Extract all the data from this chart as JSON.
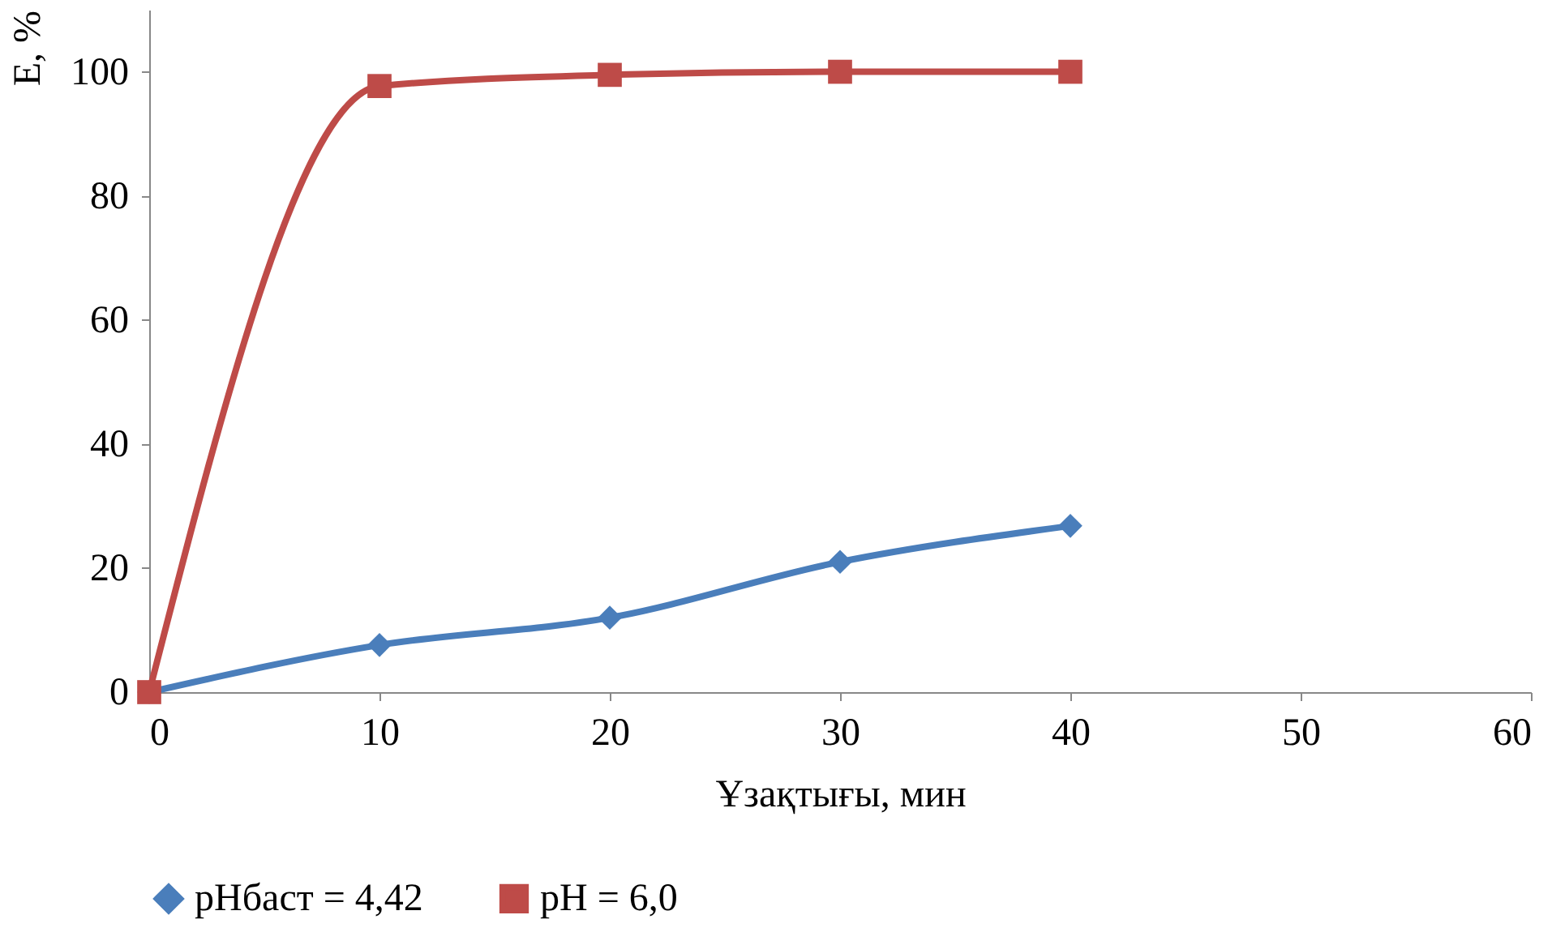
{
  "chart_data": {
    "type": "line",
    "xlabel": "Ұзақтығы, мин",
    "ylabel": "E, %",
    "xlim": [
      0,
      60
    ],
    "xticks": [
      0,
      10,
      20,
      30,
      40,
      50,
      60
    ],
    "ylim": [
      0,
      110
    ],
    "yticks": [
      0,
      20,
      40,
      60,
      80,
      100
    ],
    "grid": false,
    "legend": "bottom",
    "line_style": "solid",
    "series": [
      {
        "name": "pHбаст = 4,42",
        "color": "#4a7ebb",
        "marker": "diamond",
        "x": [
          0,
          10,
          20,
          30,
          40
        ],
        "values": [
          0,
          7.6,
          12,
          21,
          26.8
        ]
      },
      {
        "name": "pH = 6,0",
        "color": "#be4b48",
        "marker": "square",
        "x": [
          0,
          10,
          20,
          30,
          40
        ],
        "values": [
          0,
          97.7,
          99.5,
          100,
          100
        ]
      }
    ]
  }
}
